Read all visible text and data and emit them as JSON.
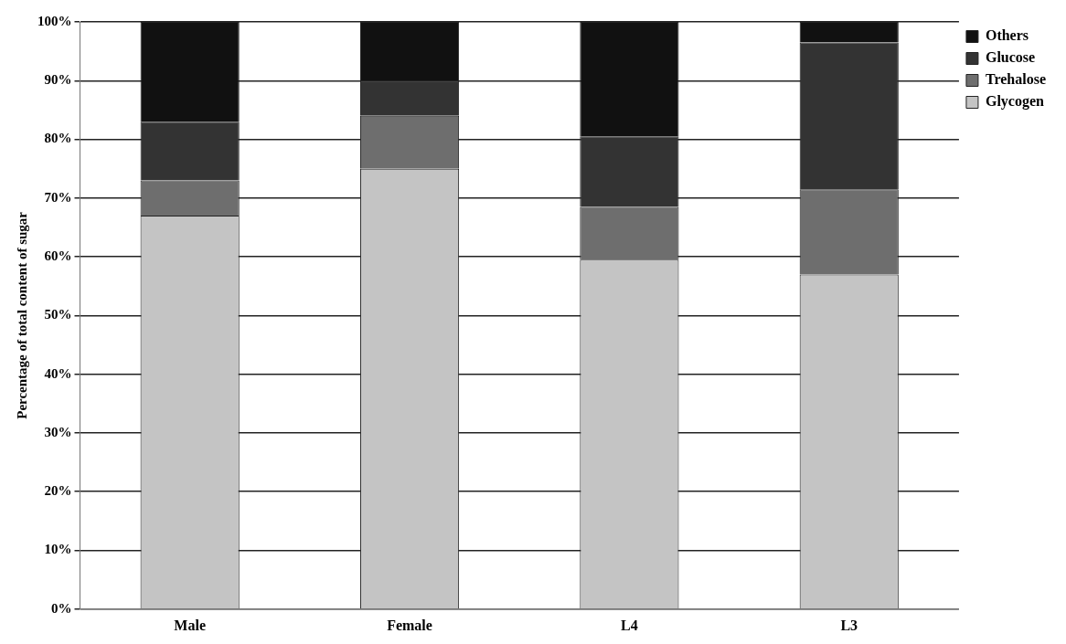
{
  "chart_data": {
    "type": "bar",
    "stacked": true,
    "ylabel": "Percentage of total content of sugar",
    "categories": [
      "Male",
      "Female",
      "L4",
      "L3"
    ],
    "series": [
      {
        "name": "Glycogen",
        "color": "#c4c4c4",
        "values": [
          67,
          75,
          59.5,
          57
        ]
      },
      {
        "name": "Trehalose",
        "color": "#6e6e6e",
        "values": [
          6,
          9,
          9,
          14.5
        ]
      },
      {
        "name": "Glucose",
        "color": "#333333",
        "values": [
          10,
          6,
          12,
          25
        ]
      },
      {
        "name": "Others",
        "color": "#111111",
        "values": [
          17,
          10,
          19.5,
          3.5
        ]
      }
    ],
    "ylim": [
      0,
      100
    ],
    "yticks": [
      {
        "value": 0,
        "label": "0%"
      },
      {
        "value": 10,
        "label": "10%"
      },
      {
        "value": 20,
        "label": "20%"
      },
      {
        "value": 30,
        "label": "30%"
      },
      {
        "value": 40,
        "label": "40%"
      },
      {
        "value": 50,
        "label": "50%"
      },
      {
        "value": 60,
        "label": "60%"
      },
      {
        "value": 70,
        "label": "70%"
      },
      {
        "value": 80,
        "label": "80%"
      },
      {
        "value": 90,
        "label": "90%"
      },
      {
        "value": 100,
        "label": "100%"
      }
    ],
    "grid": "y",
    "legend": "top right"
  }
}
